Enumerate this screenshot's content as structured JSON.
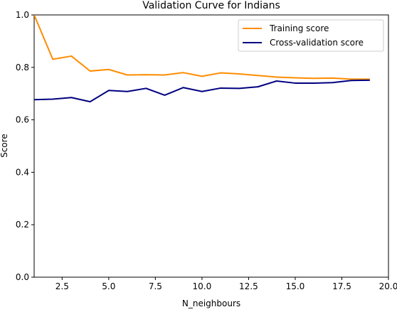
{
  "chart_data": {
    "type": "line",
    "title": "Validation Curve for Indians",
    "xlabel": "N_neighbours",
    "ylabel": "Score",
    "xlim": [
      1,
      20
    ],
    "ylim": [
      0.0,
      1.0
    ],
    "xticks": [
      2.5,
      5.0,
      7.5,
      10.0,
      12.5,
      15.0,
      17.5,
      20.0
    ],
    "xtick_labels": [
      "2.5",
      "5.0",
      "7.5",
      "10.0",
      "12.5",
      "15.0",
      "17.5",
      "20.0"
    ],
    "yticks": [
      0.0,
      0.2,
      0.4,
      0.6,
      0.8,
      1.0
    ],
    "ytick_labels": [
      "0.0",
      "0.2",
      "0.4",
      "0.6",
      "0.8",
      "1.0"
    ],
    "grid": false,
    "legend_position": "top-right",
    "x": [
      1,
      2,
      3,
      4,
      5,
      6,
      7,
      8,
      9,
      10,
      11,
      12,
      13,
      14,
      15,
      16,
      17,
      18,
      19
    ],
    "series": [
      {
        "name": "Training score",
        "color": "#ff8c00",
        "values": [
          1.0,
          0.831,
          0.843,
          0.786,
          0.792,
          0.771,
          0.772,
          0.771,
          0.78,
          0.766,
          0.779,
          0.775,
          0.769,
          0.763,
          0.76,
          0.758,
          0.759,
          0.755,
          0.755
        ]
      },
      {
        "name": "Cross-validation score",
        "color": "#000080",
        "values": [
          0.677,
          0.679,
          0.685,
          0.669,
          0.712,
          0.708,
          0.72,
          0.694,
          0.723,
          0.708,
          0.721,
          0.72,
          0.726,
          0.748,
          0.74,
          0.74,
          0.742,
          0.75,
          0.751
        ]
      }
    ]
  }
}
